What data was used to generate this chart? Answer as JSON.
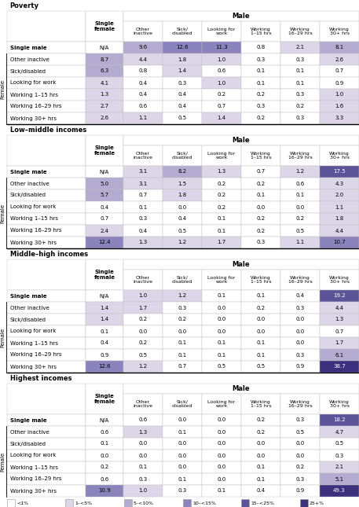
{
  "sections": [
    {
      "title": "Poverty",
      "rows": [
        {
          "label": "Single male",
          "is_bold": true,
          "female": "N/A",
          "vals": [
            9.6,
            12.6,
            11.3,
            0.8,
            2.1,
            8.1
          ]
        },
        {
          "label": "Other inactive",
          "is_bold": false,
          "female": "8.7",
          "vals": [
            4.4,
            1.8,
            1.0,
            0.3,
            0.3,
            2.6
          ]
        },
        {
          "label": "Sick/disabled",
          "is_bold": false,
          "female": "6.3",
          "vals": [
            0.8,
            1.4,
            0.6,
            0.1,
            0.1,
            0.7
          ]
        },
        {
          "label": "Looking for work",
          "is_bold": false,
          "female": "4.1",
          "vals": [
            0.4,
            0.3,
            1.0,
            0.1,
            0.1,
            0.9
          ]
        },
        {
          "label": "Working 1–15 hrs",
          "is_bold": false,
          "female": "1.3",
          "vals": [
            0.4,
            0.4,
            0.2,
            0.2,
            0.3,
            1.0
          ]
        },
        {
          "label": "Working 16–29 hrs",
          "is_bold": false,
          "female": "2.7",
          "vals": [
            0.6,
            0.4,
            0.7,
            0.3,
            0.2,
            1.6
          ]
        },
        {
          "label": "Working 30+ hrs",
          "is_bold": false,
          "female": "2.6",
          "vals": [
            1.1,
            0.5,
            1.4,
            0.2,
            0.3,
            3.3
          ]
        }
      ]
    },
    {
      "title": "Low–middle incomes",
      "rows": [
        {
          "label": "Single male",
          "is_bold": true,
          "female": "N/A",
          "vals": [
            3.1,
            8.2,
            1.3,
            0.7,
            1.2,
            17.5
          ]
        },
        {
          "label": "Other inactive",
          "is_bold": false,
          "female": "5.0",
          "vals": [
            3.1,
            1.5,
            0.2,
            0.2,
            0.6,
            4.3
          ]
        },
        {
          "label": "Sick/disabled",
          "is_bold": false,
          "female": "5.7",
          "vals": [
            0.7,
            1.8,
            0.2,
            0.1,
            0.1,
            2.0
          ]
        },
        {
          "label": "Looking for work",
          "is_bold": false,
          "female": "0.4",
          "vals": [
            0.1,
            0.0,
            0.2,
            0.0,
            0.0,
            1.1
          ]
        },
        {
          "label": "Working 1–15 hrs",
          "is_bold": false,
          "female": "0.7",
          "vals": [
            0.3,
            0.4,
            0.1,
            0.2,
            0.2,
            1.8
          ]
        },
        {
          "label": "Working 16–29 hrs",
          "is_bold": false,
          "female": "2.4",
          "vals": [
            0.4,
            0.5,
            0.1,
            0.2,
            0.5,
            4.4
          ]
        },
        {
          "label": "Working 30+ hrs",
          "is_bold": false,
          "female": "12.4",
          "vals": [
            1.3,
            1.2,
            1.7,
            0.3,
            1.1,
            10.7
          ]
        }
      ]
    },
    {
      "title": "Middle–high incomes",
      "rows": [
        {
          "label": "Single male",
          "is_bold": true,
          "female": "N/A",
          "vals": [
            1.0,
            1.2,
            0.1,
            0.1,
            0.4,
            19.2
          ]
        },
        {
          "label": "Other inactive",
          "is_bold": false,
          "female": "1.4",
          "vals": [
            1.7,
            0.3,
            0.0,
            0.2,
            0.3,
            4.4
          ]
        },
        {
          "label": "Sick/disabled",
          "is_bold": false,
          "female": "1.4",
          "vals": [
            0.2,
            0.2,
            0.0,
            0.0,
            0.0,
            1.3
          ]
        },
        {
          "label": "Looking for work",
          "is_bold": false,
          "female": "0.1",
          "vals": [
            0.0,
            0.0,
            0.0,
            0.0,
            0.0,
            0.7
          ]
        },
        {
          "label": "Working 1–15 hrs",
          "is_bold": false,
          "female": "0.4",
          "vals": [
            0.2,
            0.1,
            0.1,
            0.1,
            0.0,
            1.7
          ]
        },
        {
          "label": "Working 16–29 hrs",
          "is_bold": false,
          "female": "0.9",
          "vals": [
            0.5,
            0.1,
            0.1,
            0.1,
            0.3,
            6.1
          ]
        },
        {
          "label": "Working 30+ hrs",
          "is_bold": false,
          "female": "12.6",
          "vals": [
            1.2,
            0.7,
            0.5,
            0.5,
            0.9,
            38.7
          ]
        }
      ]
    },
    {
      "title": "Highest incomes",
      "rows": [
        {
          "label": "Single male",
          "is_bold": true,
          "female": "N/A",
          "vals": [
            0.6,
            0.0,
            0.0,
            0.2,
            0.3,
            18.2
          ]
        },
        {
          "label": "Other inactive",
          "is_bold": false,
          "female": "0.6",
          "vals": [
            1.3,
            0.1,
            0.0,
            0.2,
            0.5,
            4.7
          ]
        },
        {
          "label": "Sick/disabled",
          "is_bold": false,
          "female": "0.1",
          "vals": [
            0.0,
            0.0,
            0.0,
            0.0,
            0.0,
            0.5
          ]
        },
        {
          "label": "Looking for work",
          "is_bold": false,
          "female": "0.0",
          "vals": [
            0.0,
            0.0,
            0.0,
            0.0,
            0.0,
            0.3
          ]
        },
        {
          "label": "Working 1–15 hrs",
          "is_bold": false,
          "female": "0.2",
          "vals": [
            0.1,
            0.0,
            0.0,
            0.1,
            0.2,
            2.1
          ]
        },
        {
          "label": "Working 16–29 hrs",
          "is_bold": false,
          "female": "0.6",
          "vals": [
            0.3,
            0.1,
            0.0,
            0.1,
            0.3,
            5.1
          ]
        },
        {
          "label": "Working 30+ hrs",
          "is_bold": false,
          "female": "10.9",
          "vals": [
            1.0,
            0.3,
            0.1,
            0.4,
            0.9,
            49.3
          ]
        }
      ]
    }
  ],
  "male_col_headers": [
    "Other\ninactive",
    "Sick/\ndisabled",
    "Looking for\nwork",
    "Working\n1–15 hrs",
    "Working\n16–29 hrs",
    "Working\n30+ hrs"
  ],
  "colors": [
    "#ffffff",
    "#dcd6e8",
    "#b3acd0",
    "#8b83bc",
    "#5c5498",
    "#3b2f7e"
  ],
  "thresholds": [
    1.0,
    5.0,
    10.0,
    15.0,
    25.0
  ],
  "legend_labels": [
    "<1%",
    "1–<5%",
    "5–<10%",
    "10–<15%",
    "15–<25%",
    "25+%"
  ]
}
